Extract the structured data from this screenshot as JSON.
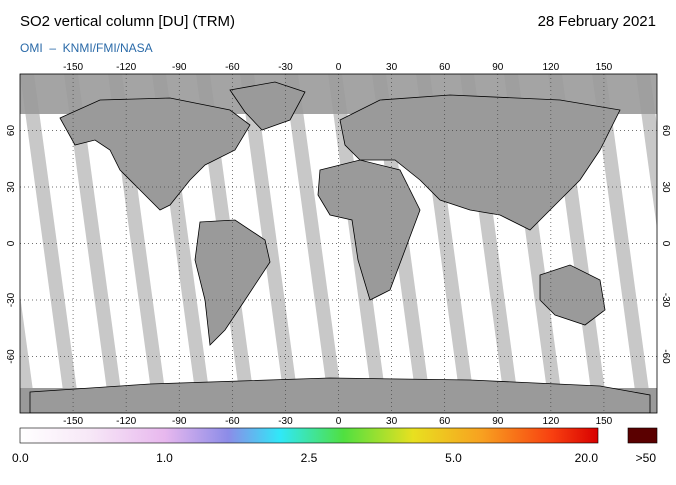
{
  "header": {
    "title": "SO2 vertical column [DU] (TRM)",
    "date": "28 February 2021",
    "source": "OMI  –  KNMI/FMI/NASA"
  },
  "map": {
    "lon_ticks": [
      -150,
      -120,
      -90,
      -60,
      -30,
      0,
      30,
      60,
      90,
      120,
      150
    ],
    "lat_ticks": [
      60,
      30,
      0,
      -30,
      -60
    ],
    "lonlim": [
      -180,
      180
    ],
    "latlim": [
      90,
      -90
    ]
  },
  "colorbar": {
    "ticks": [
      {
        "value": 0,
        "label": "0.0"
      },
      {
        "value": 1,
        "label": "1.0"
      },
      {
        "value": 2.5,
        "label": "2.5"
      },
      {
        "value": 5,
        "label": "5.0"
      },
      {
        "value": 20,
        "label": "20.0"
      }
    ],
    "overflow_label": ">50"
  }
}
